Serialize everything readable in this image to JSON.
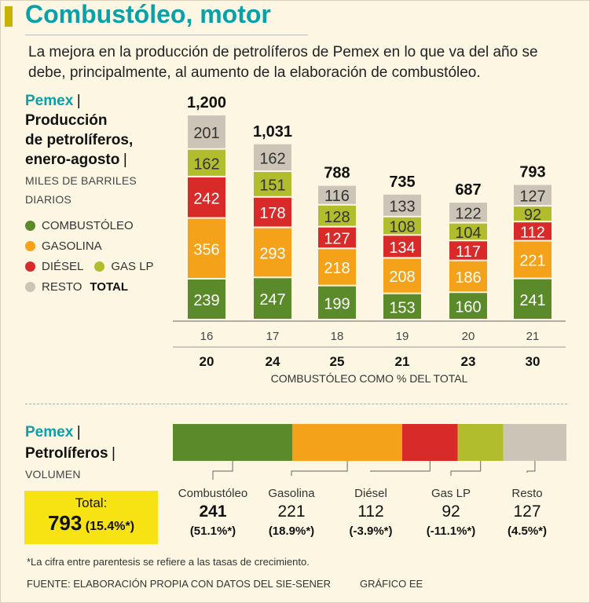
{
  "header": {
    "title": "Combustóleo, motor",
    "intro": "La mejora en la producción de petrolíferos de Pemex en lo que va del año se debe, principalmente, al aumento de la elaboración de combustóleo."
  },
  "colors": {
    "combustoleo": "#5a8a2a",
    "gasolina": "#f5a21b",
    "diesel": "#d92a2a",
    "gas_lp": "#b2bd2e",
    "resto": "#cdc4b8",
    "brand": "#0aa0a8",
    "highlight": "#f7e313"
  },
  "panel1": {
    "brand": "Pemex",
    "sep": "|",
    "heading_line1": "Producción",
    "heading_line2": "de petrolíferos,",
    "heading_line3": "enero-agosto",
    "unit_line1": "MILES DE BARRILES",
    "unit_line2": "DIARIOS",
    "legend": {
      "combustoleo": "COMBUSTÓLEO",
      "gasolina": "GASOLINA",
      "diesel": "DIÉSEL",
      "gas_lp": "GAS LP",
      "resto": "RESTO",
      "total": "TOTAL"
    }
  },
  "chart_data": {
    "type": "bar",
    "stacked": true,
    "categories": [
      "16",
      "17",
      "18",
      "19",
      "20",
      "21"
    ],
    "series": [
      {
        "name": "COMBUSTÓLEO",
        "values": [
          239,
          247,
          199,
          153,
          160,
          241
        ]
      },
      {
        "name": "GASOLINA",
        "values": [
          356,
          293,
          218,
          208,
          186,
          221
        ]
      },
      {
        "name": "DIÉSEL",
        "values": [
          242,
          178,
          127,
          134,
          117,
          112
        ]
      },
      {
        "name": "GAS LP",
        "values": [
          162,
          151,
          128,
          108,
          104,
          92
        ]
      },
      {
        "name": "RESTO",
        "values": [
          201,
          162,
          116,
          133,
          122,
          127
        ]
      }
    ],
    "totals": [
      "1,200",
      "1,031",
      "788",
      "735",
      "687",
      "793"
    ],
    "share_row": {
      "label": "COMBUSTÓLEO COMO % DEL TOTAL",
      "values": [
        "20",
        "24",
        "25",
        "21",
        "23",
        "30"
      ]
    }
  },
  "panel2": {
    "brand": "Pemex",
    "sep": "|",
    "heading": "Petrolíferos",
    "unit": "VOLUMEN",
    "total_label": "Total:",
    "total_value": "793",
    "total_pct": "(15.4%*)",
    "items": [
      {
        "key": "combustoleo",
        "name": "Combustóleo",
        "value": "241",
        "growth": "(51.1%*)",
        "bold": true
      },
      {
        "key": "gasolina",
        "name": "Gasolina",
        "value": "221",
        "growth": "(18.9%*)",
        "bold": false
      },
      {
        "key": "diesel",
        "name": "Diésel",
        "value": "112",
        "growth": "(-3.9%*)",
        "bold": false
      },
      {
        "key": "gas_lp",
        "name": "Gas LP",
        "value": "92",
        "growth": "(-11.1%*)",
        "bold": false
      },
      {
        "key": "resto",
        "name": "Resto",
        "value": "127",
        "growth": "(4.5%*)",
        "bold": false
      }
    ]
  },
  "footer": {
    "note": "*La cifra entre parentesis se refiere a las tasas de crecimiento.",
    "source": "FUENTE: ELABORACIÓN PROPIA CON DATOS DEL SIE-SENER",
    "credit": "GRÁFICO EE"
  }
}
